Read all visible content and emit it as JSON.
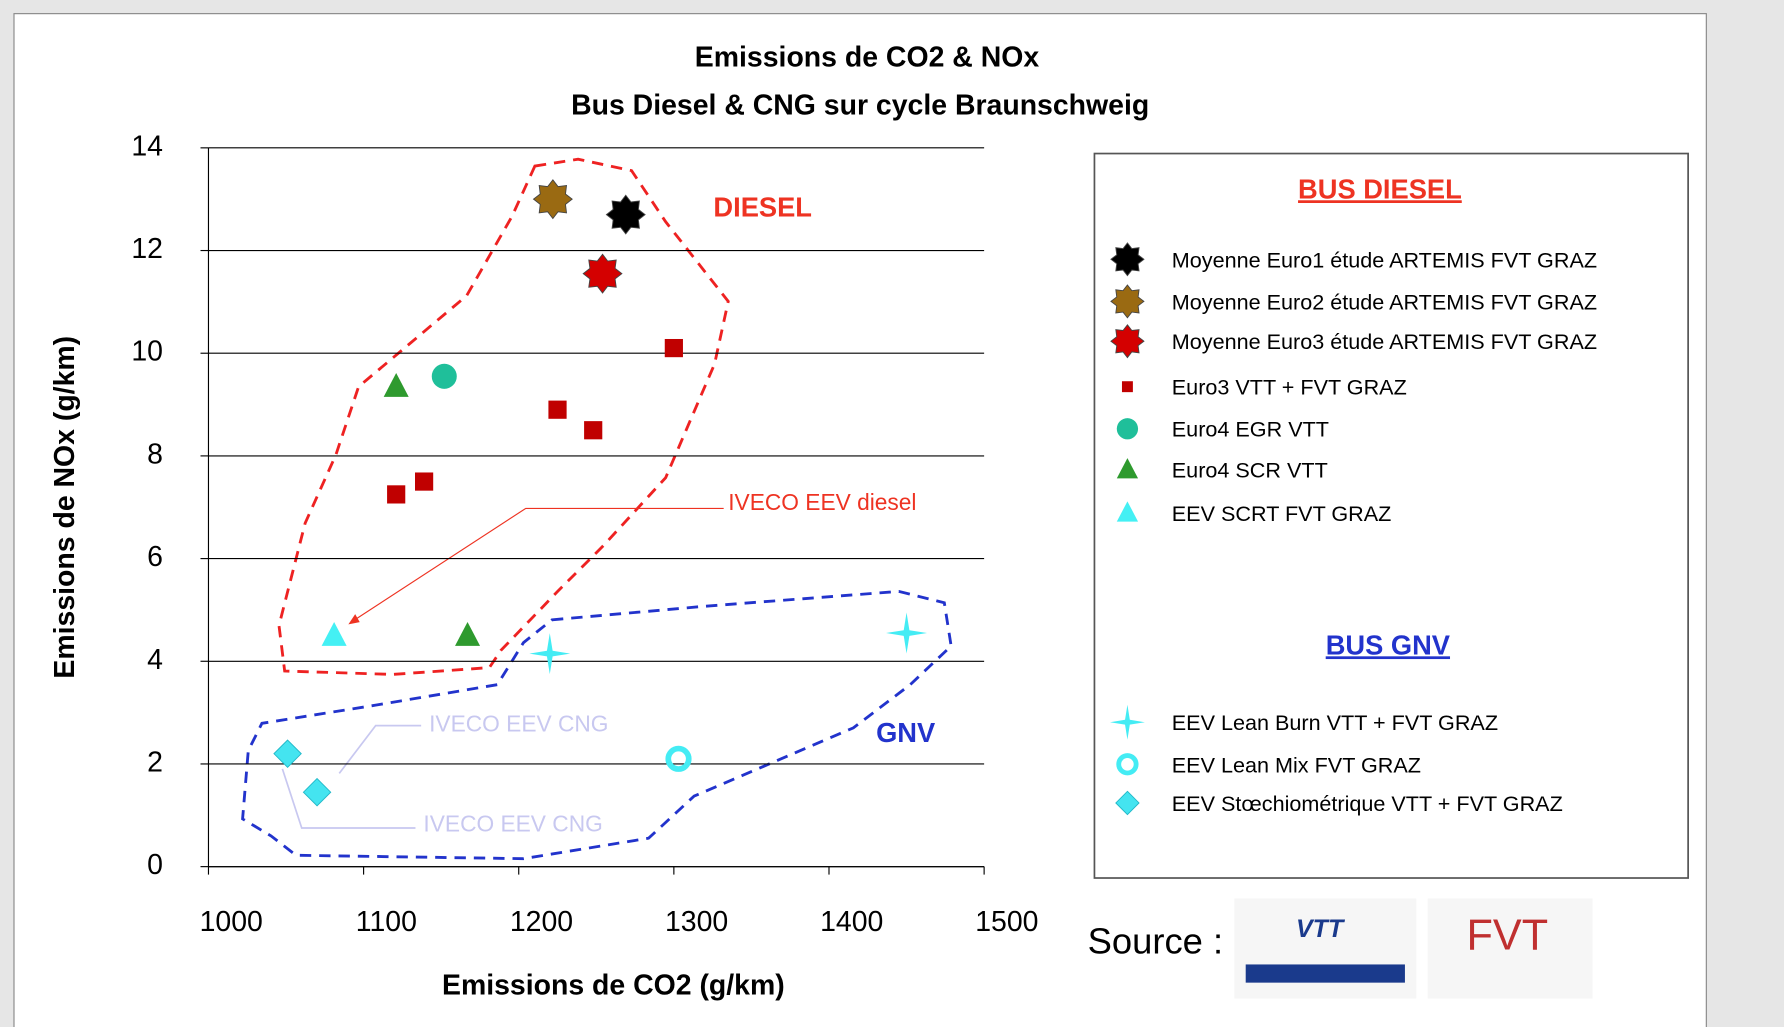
{
  "chart_data": {
    "type": "scatter",
    "title": "Emissions de CO2 & NOx",
    "subtitle": "Bus Diesel & CNG sur cycle Braunschweig",
    "x_label": "Emissions de CO2 (g/km)",
    "y_label": "Emissions de NOx (g/km)",
    "xlim": [
      1000,
      1500
    ],
    "xticks": [
      1000,
      1100,
      1200,
      1300,
      1400,
      1500
    ],
    "ylim": [
      0,
      14
    ],
    "yticks": [
      0,
      2,
      4,
      6,
      8,
      10,
      12,
      14
    ],
    "grid": true,
    "legend_titles": [
      "BUS DIESEL",
      "BUS GNV"
    ],
    "series": [
      {
        "name": "Moyenne Euro1 étude ARTEMIS FVT GRAZ",
        "color": "#000000",
        "marker": "star8",
        "x": [
          1269
        ],
        "y": [
          12.7
        ]
      },
      {
        "name": "Moyenne Euro2 étude ARTEMIS FVT GRAZ",
        "color": "#9a6a12",
        "marker": "star8",
        "x": [
          1222
        ],
        "y": [
          13.0
        ]
      },
      {
        "name": "Moyenne Euro3 étude ARTEMIS FVT GRAZ",
        "color": "#d40000",
        "marker": "star8",
        "x": [
          1254
        ],
        "y": [
          11.55
        ]
      },
      {
        "name": "Euro3  VTT + FVT GRAZ",
        "color": "#c00000",
        "marker": "square",
        "x": [
          1300,
          1225,
          1248,
          1121,
          1139
        ],
        "y": [
          10.1,
          8.9,
          8.5,
          7.25,
          7.5
        ]
      },
      {
        "name": "Euro4 EGR VTT",
        "color": "#1fbf9a",
        "marker": "circle",
        "x": [
          1152
        ],
        "y": [
          9.55
        ]
      },
      {
        "name": "Euro4 SCR VTT",
        "color": "#2e9a2e",
        "marker": "triangle",
        "x": [
          1121,
          1167
        ],
        "y": [
          9.35,
          4.5
        ]
      },
      {
        "name": "EEV SCRT FVT GRAZ",
        "color": "#44f0f4",
        "marker": "triangle",
        "x": [
          1081
        ],
        "y": [
          4.5
        ]
      },
      {
        "name": "EEV Lean Burn VTT + FVT GRAZ",
        "color": "#44ecf4",
        "marker": "star4",
        "x": [
          1220,
          1450
        ],
        "y": [
          4.15,
          4.55
        ]
      },
      {
        "name": "EEV Lean Mix FVT GRAZ",
        "color": "#44ecf4",
        "marker": "ring",
        "x": [
          1303
        ],
        "y": [
          2.1
        ]
      },
      {
        "name": "EEV Stœchiométrique VTT + FVT GRAZ",
        "color": "#44e4f0",
        "marker": "diamond",
        "x": [
          1051,
          1070
        ],
        "y": [
          2.2,
          1.45
        ]
      }
    ],
    "annotations": [
      "DIESEL",
      "GNV",
      "IVECO EEV diesel",
      "IVECO EEV CNG",
      "IVECO EEV CNG"
    ],
    "source": "Source :",
    "logos": [
      "VTT",
      "FVT"
    ]
  }
}
